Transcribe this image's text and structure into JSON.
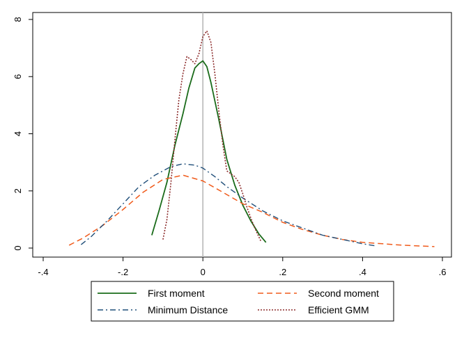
{
  "chart_data": {
    "type": "line",
    "title": "",
    "xlabel": "",
    "ylabel": "",
    "xlim": [
      -0.4,
      0.6
    ],
    "ylim": [
      0,
      8
    ],
    "x_ticks": [
      -0.4,
      -0.2,
      0,
      0.2,
      0.4,
      0.6
    ],
    "x_tick_labels": [
      "-.4",
      "-.2",
      "0",
      ".2",
      ".4",
      ".6"
    ],
    "y_ticks": [
      0,
      2,
      4,
      6,
      8
    ],
    "y_tick_labels": [
      "0",
      "2",
      "4",
      "6",
      "8"
    ],
    "vertical_reference_line": 0,
    "grid": false,
    "legend_position": "bottom",
    "series": [
      {
        "name": "First moment",
        "color": "#1a6b1a",
        "style": "solid",
        "points": [
          [
            -0.128,
            0.45
          ],
          [
            -0.11,
            1.3
          ],
          [
            -0.09,
            2.3
          ],
          [
            -0.07,
            3.6
          ],
          [
            -0.05,
            4.7
          ],
          [
            -0.035,
            5.6
          ],
          [
            -0.02,
            6.3
          ],
          [
            -0.01,
            6.45
          ],
          [
            0,
            6.55
          ],
          [
            0.01,
            6.35
          ],
          [
            0.02,
            5.8
          ],
          [
            0.04,
            4.5
          ],
          [
            0.06,
            3.1
          ],
          [
            0.08,
            2.2
          ],
          [
            0.1,
            1.5
          ],
          [
            0.12,
            0.95
          ],
          [
            0.14,
            0.5
          ],
          [
            0.158,
            0.2
          ]
        ]
      },
      {
        "name": "Second moment",
        "color": "#f05a1a",
        "style": "dash",
        "points": [
          [
            -0.335,
            0.1
          ],
          [
            -0.3,
            0.35
          ],
          [
            -0.25,
            0.8
          ],
          [
            -0.2,
            1.35
          ],
          [
            -0.15,
            1.95
          ],
          [
            -0.1,
            2.4
          ],
          [
            -0.05,
            2.55
          ],
          [
            0,
            2.35
          ],
          [
            0.05,
            1.95
          ],
          [
            0.1,
            1.55
          ],
          [
            0.15,
            1.25
          ],
          [
            0.2,
            0.9
          ],
          [
            0.25,
            0.65
          ],
          [
            0.3,
            0.45
          ],
          [
            0.35,
            0.3
          ],
          [
            0.4,
            0.2
          ],
          [
            0.45,
            0.15
          ],
          [
            0.5,
            0.1
          ],
          [
            0.58,
            0.05
          ]
        ]
      },
      {
        "name": "Minimum Distance",
        "color": "#1f4e79",
        "style": "dashdot",
        "points": [
          [
            -0.305,
            0.12
          ],
          [
            -0.28,
            0.4
          ],
          [
            -0.24,
            0.95
          ],
          [
            -0.2,
            1.55
          ],
          [
            -0.16,
            2.15
          ],
          [
            -0.12,
            2.55
          ],
          [
            -0.08,
            2.85
          ],
          [
            -0.05,
            2.95
          ],
          [
            -0.02,
            2.9
          ],
          [
            0,
            2.8
          ],
          [
            0.03,
            2.5
          ],
          [
            0.06,
            2.15
          ],
          [
            0.1,
            1.75
          ],
          [
            0.15,
            1.3
          ],
          [
            0.2,
            0.95
          ],
          [
            0.25,
            0.7
          ],
          [
            0.3,
            0.45
          ],
          [
            0.35,
            0.3
          ],
          [
            0.4,
            0.15
          ],
          [
            0.435,
            0.07
          ]
        ]
      },
      {
        "name": "Efficient GMM",
        "color": "#8b2a2a",
        "style": "dot",
        "points": [
          [
            -0.1,
            0.3
          ],
          [
            -0.09,
            1.0
          ],
          [
            -0.08,
            2.3
          ],
          [
            -0.07,
            3.8
          ],
          [
            -0.06,
            5.2
          ],
          [
            -0.05,
            6.1
          ],
          [
            -0.04,
            6.7
          ],
          [
            -0.03,
            6.6
          ],
          [
            -0.02,
            6.45
          ],
          [
            -0.01,
            6.8
          ],
          [
            0,
            7.4
          ],
          [
            0.01,
            7.6
          ],
          [
            0.02,
            7.2
          ],
          [
            0.03,
            6.1
          ],
          [
            0.04,
            4.8
          ],
          [
            0.05,
            3.6
          ],
          [
            0.06,
            2.7
          ],
          [
            0.07,
            2.6
          ],
          [
            0.08,
            2.5
          ],
          [
            0.09,
            2.3
          ],
          [
            0.1,
            1.9
          ],
          [
            0.11,
            1.45
          ],
          [
            0.12,
            1.05
          ],
          [
            0.13,
            0.7
          ],
          [
            0.14,
            0.4
          ],
          [
            0.145,
            0.25
          ]
        ]
      }
    ]
  }
}
